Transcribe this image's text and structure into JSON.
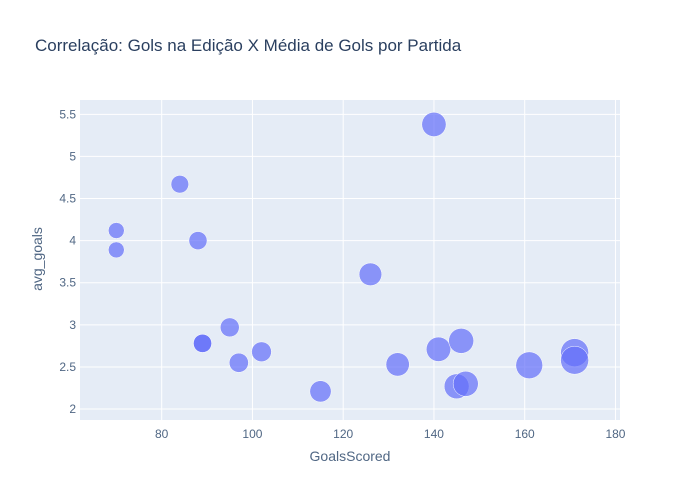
{
  "chart_data": {
    "type": "scatter",
    "title": "Correlação: Gols na Edição X Média de Gols por Partida",
    "xlabel": "GoalsScored",
    "ylabel": "avg_goals",
    "xlim": [
      62,
      181
    ],
    "ylim": [
      1.87,
      5.67
    ],
    "x_ticks": [
      80,
      100,
      120,
      140,
      160,
      180
    ],
    "y_ticks": [
      2,
      2.5,
      3,
      3.5,
      4,
      4.5,
      5,
      5.5
    ],
    "x_tick_labels": [
      "80",
      "100",
      "120",
      "140",
      "160",
      "180"
    ],
    "y_tick_labels": [
      "2",
      "2.5",
      "3",
      "3.5",
      "4",
      "4.5",
      "5",
      "5.5"
    ],
    "grid": true,
    "colors": {
      "marker": "#636efa",
      "plot_bg": "#e5ecf6",
      "grid": "#ffffff",
      "text": "#2a3f5f"
    },
    "series": [
      {
        "x": [
          70,
          70,
          84,
          88,
          89,
          89,
          95,
          97,
          102,
          115,
          126,
          132,
          140,
          141,
          145,
          146,
          147,
          161,
          171,
          171
        ],
        "y": [
          4.12,
          3.89,
          4.67,
          4.0,
          2.78,
          2.78,
          2.97,
          2.55,
          2.68,
          2.21,
          3.6,
          2.53,
          5.38,
          2.71,
          2.27,
          2.81,
          2.3,
          2.52,
          2.67,
          2.58
        ]
      }
    ]
  }
}
